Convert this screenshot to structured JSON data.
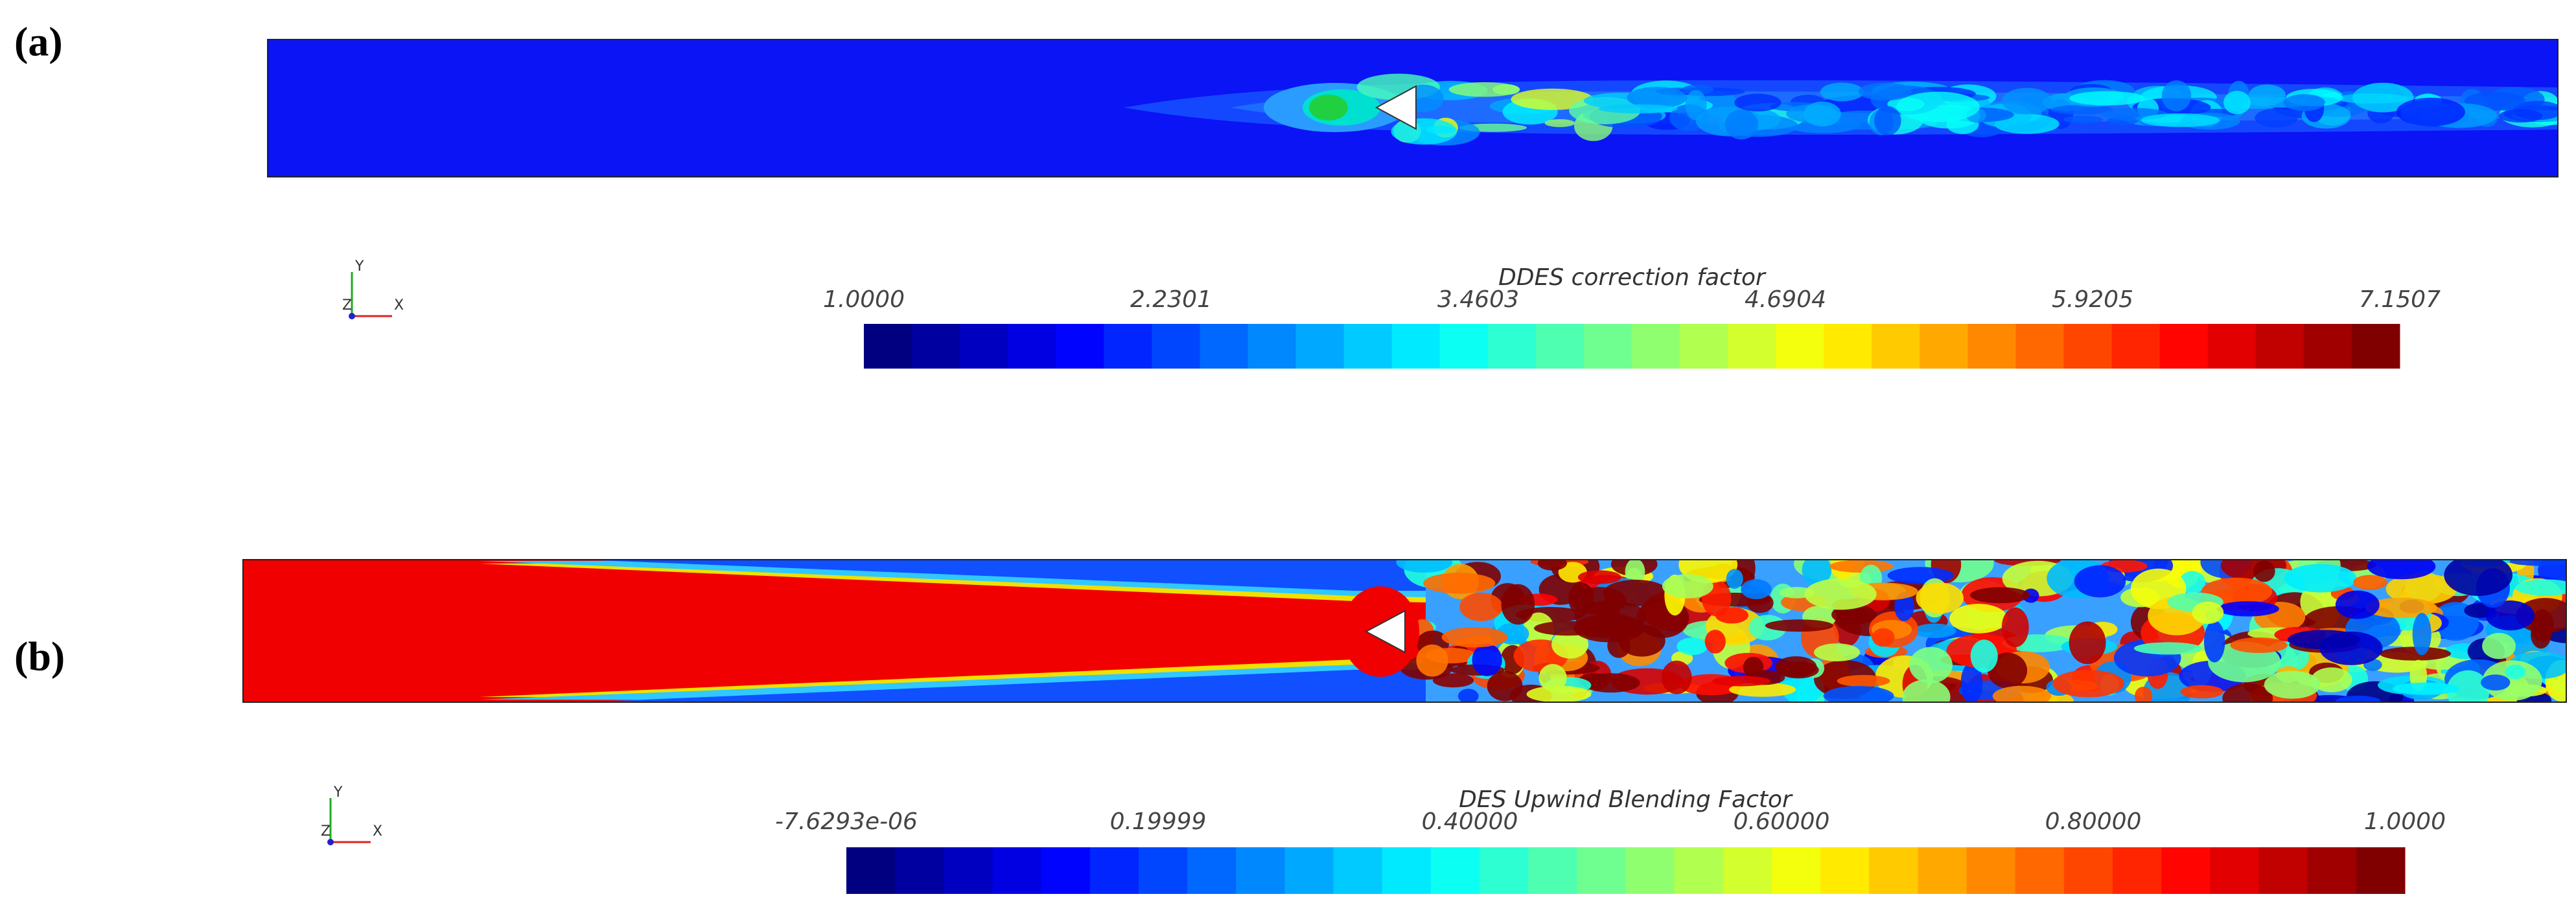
{
  "panels": [
    {
      "label": "(a)",
      "colorbar": {
        "title": "DDES correction factor",
        "ticks": [
          "1.0000",
          "2.2301",
          "3.4603",
          "4.6904",
          "5.9205",
          "7.1507"
        ]
      },
      "axes": {
        "y": "Y",
        "z": "Z",
        "x": "X"
      }
    },
    {
      "label": "(b)",
      "colorbar": {
        "title": "DES Upwind Blending Factor",
        "ticks": [
          "-7.6293e-06",
          "0.19999",
          "0.40000",
          "0.60000",
          "0.80000",
          "1.0000"
        ]
      },
      "axes": {
        "y": "Y",
        "z": "Z",
        "x": "X"
      }
    }
  ]
}
